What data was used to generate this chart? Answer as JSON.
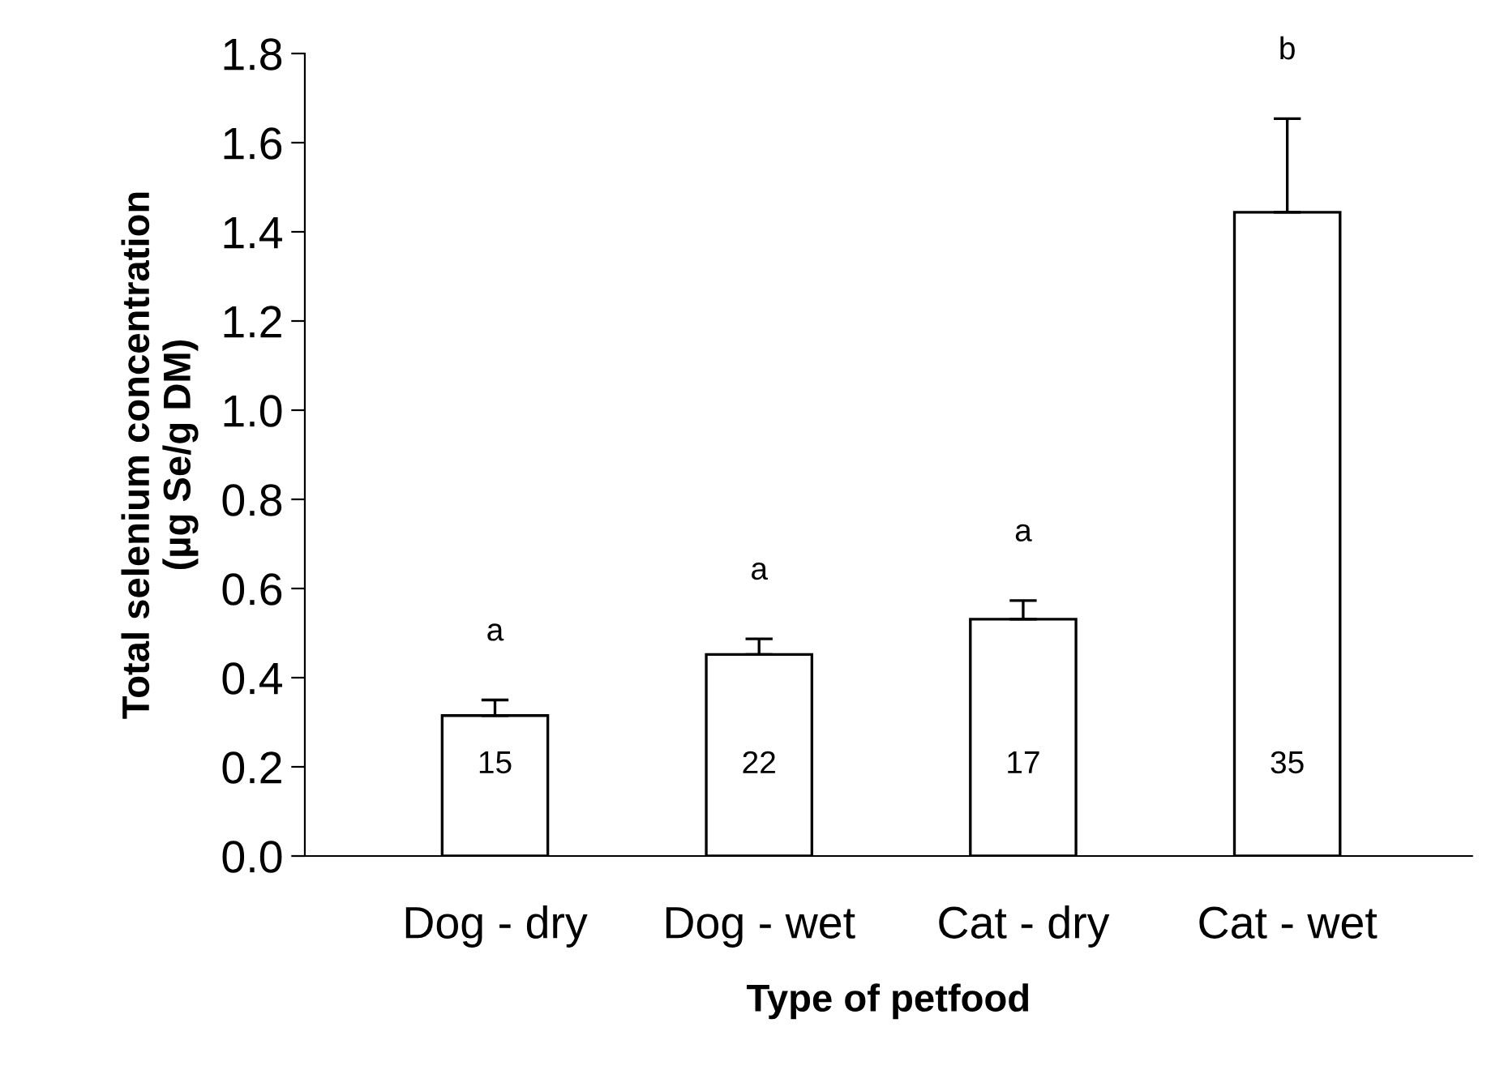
{
  "chart_data": {
    "type": "bar",
    "xlabel": "Type of petfood",
    "ylabel": "Total selenium concentration\n(µg Se/g DM)",
    "categories": [
      "Dog - dry",
      "Dog - wet",
      "Cat - dry",
      "Cat - wet"
    ],
    "values": [
      0.315,
      0.452,
      0.531,
      1.444
    ],
    "errors": [
      [
        0.315,
        0.35
      ],
      [
        0.452,
        0.487
      ],
      [
        0.531,
        0.573
      ],
      [
        1.444,
        1.654
      ]
    ],
    "color": "#ffffff",
    "ylim": [
      0,
      1.8
    ],
    "yticks": [
      {
        "value": 0,
        "label": "0.0"
      },
      {
        "value": 0.2,
        "label": "0.2"
      },
      {
        "value": 0.4,
        "label": "0.4"
      },
      {
        "value": 0.6,
        "label": "0.6"
      },
      {
        "value": 0.8,
        "label": "0.8"
      },
      {
        "value": 1.0,
        "label": "1.0"
      },
      {
        "value": 1.2,
        "label": "1.2"
      },
      {
        "value": 1.4,
        "label": "1.4"
      },
      {
        "value": 1.6,
        "label": "1.6"
      },
      {
        "value": 1.8,
        "label": "1.8"
      }
    ],
    "grid": false,
    "legend": false,
    "annotations": [
      "a",
      "a",
      "a",
      "b",
      "15",
      "22",
      "17",
      "35"
    ]
  }
}
